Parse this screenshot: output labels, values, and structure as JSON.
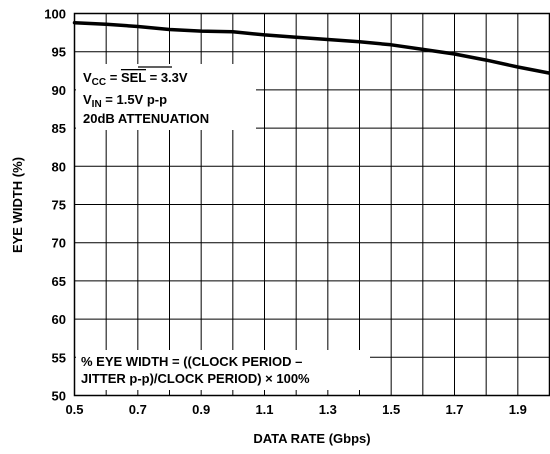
{
  "chart_data": {
    "type": "line",
    "title": "",
    "xlabel": "DATA RATE (Gbps)",
    "ylabel": "EYE WIDTH (%)",
    "xlim": [
      0.5,
      2.0
    ],
    "ylim": [
      50,
      100
    ],
    "x_ticks": [
      0.5,
      0.7,
      0.9,
      1.1,
      1.3,
      1.5,
      1.7,
      1.9
    ],
    "x_tick_labels": [
      "0.5",
      "0.7",
      "0.9",
      "1.1",
      "1.3",
      "1.5",
      "1.7",
      "1.9"
    ],
    "y_ticks": [
      50,
      55,
      60,
      65,
      70,
      75,
      80,
      85,
      90,
      95,
      100
    ],
    "y_tick_labels": [
      "50",
      "55",
      "60",
      "65",
      "70",
      "75",
      "80",
      "85",
      "90",
      "95",
      "100"
    ],
    "x_grid_lines": [
      0.6,
      0.8,
      1.0,
      1.2,
      1.4,
      1.6,
      1.8
    ],
    "grid": true,
    "line_color": "#000000",
    "series": [
      {
        "x": [
          0.5,
          0.6,
          0.7,
          0.8,
          0.9,
          1.0,
          1.1,
          1.2,
          1.3,
          1.4,
          1.5,
          1.6,
          1.7,
          1.8,
          1.9,
          2.0
        ],
        "values": [
          98.8,
          98.6,
          98.3,
          97.9,
          97.7,
          97.6,
          97.2,
          96.9,
          96.6,
          96.3,
          95.9,
          95.3,
          94.7,
          93.9,
          93.0,
          92.2
        ]
      }
    ],
    "annotations": {
      "conditions": {
        "line1": {
          "prefix": "V",
          "sub": "CC",
          "mid": " = ",
          "overlined": "SEL",
          "suffix": " = 3.3V"
        },
        "line2": {
          "prefix": "V",
          "sub": "IN",
          "suffix": " = 1.5V p-p"
        },
        "line3": "20dB ATTENUATION"
      },
      "formula": {
        "line1": "% EYE WIDTH = ((CLOCK PERIOD –",
        "line2": "JITTER p-p)/CLOCK PERIOD) × 100%"
      }
    }
  }
}
